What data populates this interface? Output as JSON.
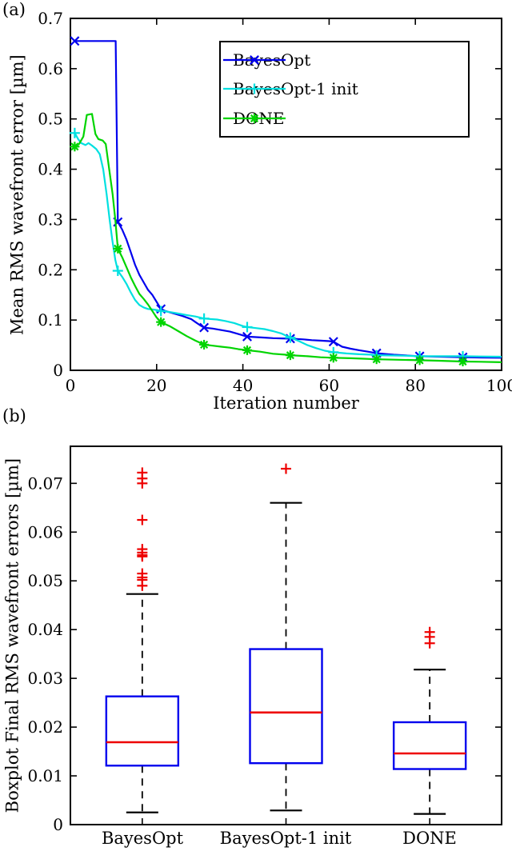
{
  "figure": {
    "panel_a_label": "(a)",
    "panel_b_label": "(b)",
    "background": "#ffffff",
    "axis_color": "#000000",
    "colors": {
      "bayesopt": "#0000ee",
      "bayesopt_1_init": "#00e0e0",
      "done": "#00d400",
      "median": "#ee0000",
      "outlier": "#ee0000",
      "box_edge": "#0000ee",
      "whisker": "#000000"
    }
  },
  "chart_data": [
    {
      "type": "line",
      "title": "",
      "xlabel": "Iteration number",
      "ylabel": "Mean RMS wavefront error [µm]",
      "xlim": [
        0,
        100
      ],
      "ylim": [
        0,
        0.7
      ],
      "grid": false,
      "xticks": [
        0,
        20,
        40,
        60,
        80,
        100
      ],
      "xtick_labels": [
        "0",
        "20",
        "40",
        "60",
        "80",
        "100"
      ],
      "yticks": [
        0,
        0.1,
        0.2,
        0.3,
        0.4,
        0.5,
        0.6,
        0.7
      ],
      "ytick_labels": [
        "0",
        "0.1",
        "0.2",
        "0.3",
        "0.4",
        "0.5",
        "0.6",
        "0.7"
      ],
      "legend_position": "upper right",
      "series": [
        {
          "name": "BayesOpt",
          "color": "#0000ee",
          "marker": "x",
          "marker_x": [
            1,
            11,
            21,
            31,
            41,
            51,
            61,
            71,
            81,
            91
          ],
          "marker_y": [
            0.655,
            0.295,
            0.122,
            0.085,
            0.067,
            0.063,
            0.057,
            0.034,
            0.028,
            0.026
          ],
          "line": [
            [
              1,
              0.655
            ],
            [
              10.5,
              0.655
            ],
            [
              11,
              0.295
            ],
            [
              12,
              0.28
            ],
            [
              13,
              0.26
            ],
            [
              14,
              0.235
            ],
            [
              15,
              0.21
            ],
            [
              16,
              0.19
            ],
            [
              17,
              0.175
            ],
            [
              18,
              0.16
            ],
            [
              19,
              0.15
            ],
            [
              20,
              0.136
            ],
            [
              21,
              0.122
            ],
            [
              22,
              0.118
            ],
            [
              24,
              0.113
            ],
            [
              26,
              0.108
            ],
            [
              28,
              0.102
            ],
            [
              29,
              0.096
            ],
            [
              30,
              0.09
            ],
            [
              31,
              0.085
            ],
            [
              33,
              0.083
            ],
            [
              35,
              0.08
            ],
            [
              37,
              0.077
            ],
            [
              39,
              0.072
            ],
            [
              41,
              0.067
            ],
            [
              43,
              0.066
            ],
            [
              45,
              0.065
            ],
            [
              47,
              0.064
            ],
            [
              49,
              0.0635
            ],
            [
              51,
              0.063
            ],
            [
              54,
              0.0615
            ],
            [
              56,
              0.06
            ],
            [
              58,
              0.059
            ],
            [
              60,
              0.058
            ],
            [
              61,
              0.057
            ],
            [
              62,
              0.052
            ],
            [
              63,
              0.047
            ],
            [
              65,
              0.043
            ],
            [
              67,
              0.04
            ],
            [
              69,
              0.037
            ],
            [
              71,
              0.034
            ],
            [
              73,
              0.0325
            ],
            [
              75,
              0.031
            ],
            [
              77,
              0.03
            ],
            [
              79,
              0.029
            ],
            [
              81,
              0.028
            ],
            [
              85,
              0.0272
            ],
            [
              88,
              0.0265
            ],
            [
              91,
              0.026
            ],
            [
              95,
              0.0255
            ],
            [
              100,
              0.025
            ]
          ]
        },
        {
          "name": "BayesOpt-1 init",
          "color": "#00e0e0",
          "marker": "+",
          "marker_x": [
            1,
            11,
            21,
            31,
            41,
            51,
            61,
            71,
            81,
            91
          ],
          "marker_y": [
            0.472,
            0.198,
            0.118,
            0.103,
            0.086,
            0.065,
            0.036,
            0.03,
            0.028,
            0.028
          ],
          "line": [
            [
              1,
              0.472
            ],
            [
              1.8,
              0.46
            ],
            [
              2.5,
              0.452
            ],
            [
              3.5,
              0.448
            ],
            [
              4.2,
              0.452
            ],
            [
              5,
              0.447
            ],
            [
              6,
              0.44
            ],
            [
              6.8,
              0.43
            ],
            [
              7.6,
              0.4
            ],
            [
              8.4,
              0.35
            ],
            [
              9.1,
              0.3
            ],
            [
              9.7,
              0.26
            ],
            [
              10.4,
              0.22
            ],
            [
              11,
              0.198
            ],
            [
              12,
              0.186
            ],
            [
              13,
              0.172
            ],
            [
              14,
              0.155
            ],
            [
              15,
              0.14
            ],
            [
              16,
              0.13
            ],
            [
              17,
              0.125
            ],
            [
              18,
              0.122
            ],
            [
              19,
              0.121
            ],
            [
              20,
              0.12
            ],
            [
              21,
              0.118
            ],
            [
              23,
              0.116
            ],
            [
              25,
              0.113
            ],
            [
              27,
              0.11
            ],
            [
              29,
              0.107
            ],
            [
              31,
              0.103
            ],
            [
              34,
              0.101
            ],
            [
              36,
              0.098
            ],
            [
              38,
              0.094
            ],
            [
              40,
              0.088
            ],
            [
              41,
              0.086
            ],
            [
              43,
              0.084
            ],
            [
              45,
              0.082
            ],
            [
              47,
              0.078
            ],
            [
              49,
              0.073
            ],
            [
              51,
              0.065
            ],
            [
              53,
              0.058
            ],
            [
              55,
              0.05
            ],
            [
              57,
              0.044
            ],
            [
              59,
              0.039
            ],
            [
              61,
              0.036
            ],
            [
              64,
              0.0335
            ],
            [
              67,
              0.032
            ],
            [
              70,
              0.031
            ],
            [
              71,
              0.03
            ],
            [
              75,
              0.0295
            ],
            [
              78,
              0.029
            ],
            [
              81,
              0.028
            ],
            [
              85,
              0.028
            ],
            [
              91,
              0.028
            ],
            [
              95,
              0.0275
            ],
            [
              100,
              0.027
            ]
          ]
        },
        {
          "name": "DONE",
          "color": "#00d400",
          "marker": "*",
          "marker_x": [
            1,
            11,
            21,
            31,
            41,
            51,
            61,
            71,
            81,
            91
          ],
          "marker_y": [
            0.445,
            0.242,
            0.096,
            0.051,
            0.04,
            0.03,
            0.025,
            0.022,
            0.02,
            0.0175
          ],
          "line": [
            [
              1,
              0.445
            ],
            [
              2,
              0.45
            ],
            [
              3,
              0.465
            ],
            [
              3.8,
              0.508
            ],
            [
              5,
              0.51
            ],
            [
              5.8,
              0.47
            ],
            [
              6.5,
              0.46
            ],
            [
              7.5,
              0.457
            ],
            [
              8.2,
              0.45
            ],
            [
              9,
              0.4
            ],
            [
              9.8,
              0.35
            ],
            [
              10.4,
              0.3
            ],
            [
              11,
              0.242
            ],
            [
              12,
              0.225
            ],
            [
              13,
              0.205
            ],
            [
              14,
              0.185
            ],
            [
              15,
              0.168
            ],
            [
              16,
              0.152
            ],
            [
              17,
              0.142
            ],
            [
              18,
              0.131
            ],
            [
              19,
              0.118
            ],
            [
              20,
              0.105
            ],
            [
              21,
              0.096
            ],
            [
              23,
              0.088
            ],
            [
              25,
              0.078
            ],
            [
              27,
              0.068
            ],
            [
              29,
              0.059
            ],
            [
              31,
              0.051
            ],
            [
              33,
              0.049
            ],
            [
              35,
              0.047
            ],
            [
              37,
              0.045
            ],
            [
              39,
              0.042
            ],
            [
              41,
              0.04
            ],
            [
              44,
              0.037
            ],
            [
              47,
              0.033
            ],
            [
              50,
              0.031
            ],
            [
              51,
              0.03
            ],
            [
              55,
              0.028
            ],
            [
              58,
              0.026
            ],
            [
              61,
              0.025
            ],
            [
              65,
              0.024
            ],
            [
              68,
              0.023
            ],
            [
              71,
              0.022
            ],
            [
              76,
              0.021
            ],
            [
              81,
              0.02
            ],
            [
              86,
              0.019
            ],
            [
              91,
              0.0175
            ],
            [
              95,
              0.017
            ],
            [
              100,
              0.016
            ]
          ]
        }
      ]
    },
    {
      "type": "boxplot",
      "title": "",
      "xlabel": "",
      "ylabel": "Boxplot Final RMS wavefront errors [µm]",
      "ylim": [
        0,
        0.0776
      ],
      "grid": false,
      "yticks": [
        0,
        0.01,
        0.02,
        0.03,
        0.04,
        0.05,
        0.06,
        0.07
      ],
      "ytick_labels": [
        "0",
        "0.01",
        "0.02",
        "0.03",
        "0.04",
        "0.05",
        "0.06",
        "0.07"
      ],
      "categories": [
        "BayesOpt",
        "BayesOpt-1 init",
        "DONE"
      ],
      "boxes": [
        {
          "label": "BayesOpt",
          "whisker_low": 0.0025,
          "q1": 0.0121,
          "median": 0.0169,
          "q3": 0.0263,
          "whisker_high": 0.0473,
          "outliers": [
            0.049,
            0.0502,
            0.0507,
            0.0515,
            0.055,
            0.0553,
            0.0558,
            0.0565,
            0.0625,
            0.07,
            0.071,
            0.0722
          ]
        },
        {
          "label": "BayesOpt-1 init",
          "whisker_low": 0.0029,
          "q1": 0.0126,
          "median": 0.023,
          "q3": 0.036,
          "whisker_high": 0.066,
          "outliers": [
            0.073
          ]
        },
        {
          "label": "DONE",
          "whisker_low": 0.0022,
          "q1": 0.0114,
          "median": 0.0146,
          "q3": 0.021,
          "whisker_high": 0.0318,
          "outliers": [
            0.0372,
            0.0385,
            0.0395
          ]
        }
      ]
    }
  ]
}
